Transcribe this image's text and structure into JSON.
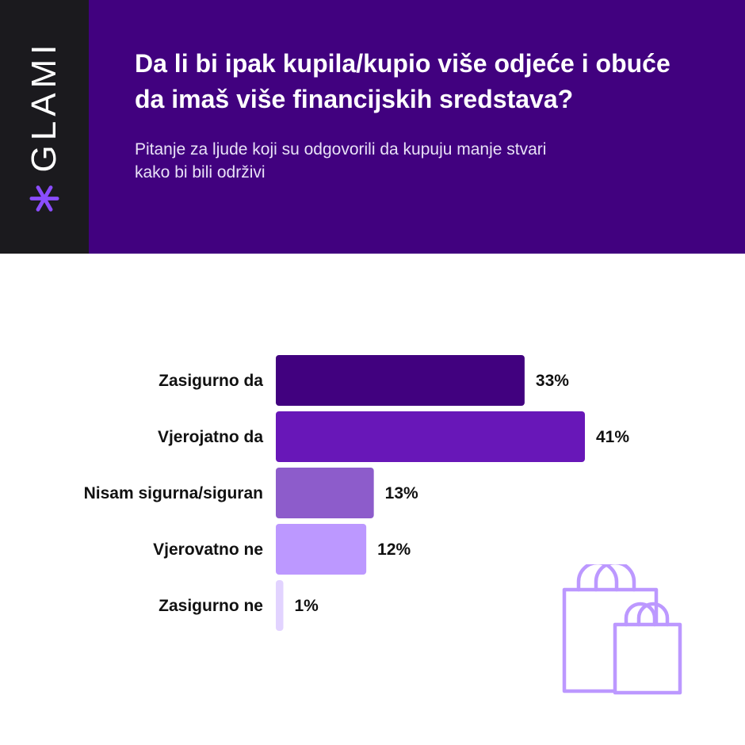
{
  "brand": {
    "name": "GLAMI",
    "mark_icon": "asterisk-icon",
    "mark_color": "#8b4dff"
  },
  "header": {
    "title": "Da li bi ipak kupila/kupio više odjeće i obuće\nda imaš više financijskih sredstava?",
    "subtitle": "Pitanje za ljude koji su odgovorili da kupuju manje stvari\n kako bi bili održivi"
  },
  "colors": {
    "header_bg": "#41017f",
    "sidebar_bg": "#1b1a1e",
    "icon_stroke": "#bc98ff"
  },
  "decoration": {
    "icon": "shopping-bags-icon"
  },
  "chart_data": {
    "type": "bar",
    "orientation": "horizontal",
    "categories": [
      "Zasigurno da",
      "Vjerojatno da",
      "Nisam sigurna/siguran",
      "Vjerovatno ne",
      "Zasigurno ne"
    ],
    "values": [
      33,
      41,
      13,
      12,
      1
    ],
    "value_labels": [
      "33%",
      "41%",
      "13%",
      "12%",
      "1%"
    ],
    "unit": "%",
    "bar_colors": [
      "#41017f",
      "#6817b8",
      "#8d5ccb",
      "#bc98ff",
      "#e2d3ff"
    ],
    "xlim": [
      0,
      41
    ],
    "grid": false,
    "legend": "none"
  }
}
